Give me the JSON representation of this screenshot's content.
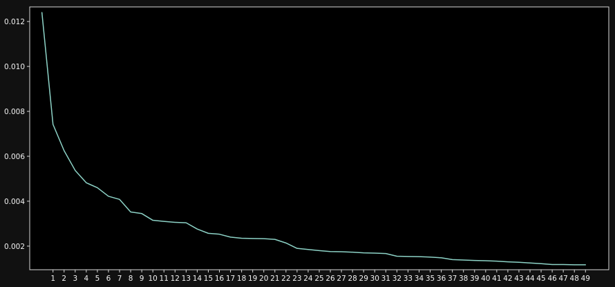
{
  "chart_data": {
    "type": "line",
    "title": "",
    "xlabel": "",
    "ylabel": "",
    "grid": false,
    "xlim": [
      -1.1,
      51.1
    ],
    "ylim": [
      0.00095,
      0.01265
    ],
    "x": [
      0,
      1,
      2,
      3,
      4,
      5,
      6,
      7,
      8,
      9,
      10,
      11,
      12,
      13,
      14,
      15,
      16,
      17,
      18,
      19,
      20,
      21,
      22,
      23,
      24,
      25,
      26,
      27,
      28,
      29,
      30,
      31,
      32,
      33,
      34,
      35,
      36,
      37,
      38,
      39,
      40,
      41,
      42,
      43,
      44,
      45,
      46,
      47,
      48,
      49
    ],
    "x_tick_labels": [
      "1",
      "2",
      "3",
      "4",
      "5",
      "6",
      "7",
      "8",
      "9",
      "10",
      "11",
      "12",
      "13",
      "14",
      "15",
      "16",
      "17",
      "18",
      "19",
      "20",
      "21",
      "22",
      "23",
      "24",
      "25",
      "26",
      "27",
      "28",
      "29",
      "30",
      "31",
      "32",
      "33",
      "34",
      "35",
      "36",
      "37",
      "38",
      "39",
      "40",
      "41",
      "42",
      "43",
      "44",
      "45",
      "46",
      "47",
      "48",
      "49"
    ],
    "y_ticks": [
      0.002,
      0.004,
      0.006,
      0.008,
      0.01,
      0.012
    ],
    "y_tick_labels": [
      "0.002",
      "0.004",
      "0.006",
      "0.008",
      "0.010",
      "0.012"
    ],
    "series": [
      {
        "values": [
          0.0124,
          0.00742,
          0.00625,
          0.00537,
          0.00482,
          0.0046,
          0.00422,
          0.00408,
          0.00352,
          0.00345,
          0.00315,
          0.0031,
          0.00306,
          0.00304,
          0.00276,
          0.00257,
          0.00253,
          0.0024,
          0.00235,
          0.00234,
          0.00233,
          0.0023,
          0.00214,
          0.0019,
          0.00185,
          0.0018,
          0.00176,
          0.00175,
          0.00173,
          0.0017,
          0.00169,
          0.00167,
          0.00155,
          0.00154,
          0.00153,
          0.00151,
          0.00148,
          0.0014,
          0.00138,
          0.00136,
          0.00135,
          0.00133,
          0.0013,
          0.00128,
          0.00125,
          0.00122,
          0.00118,
          0.00118,
          0.00117,
          0.00117
        ]
      }
    ],
    "colors": {
      "figure_background": "#111111",
      "plot_background": "#000000",
      "axes": "#d9d9d9",
      "text": "#f2f2f2",
      "line": "#8dd3c7"
    }
  }
}
